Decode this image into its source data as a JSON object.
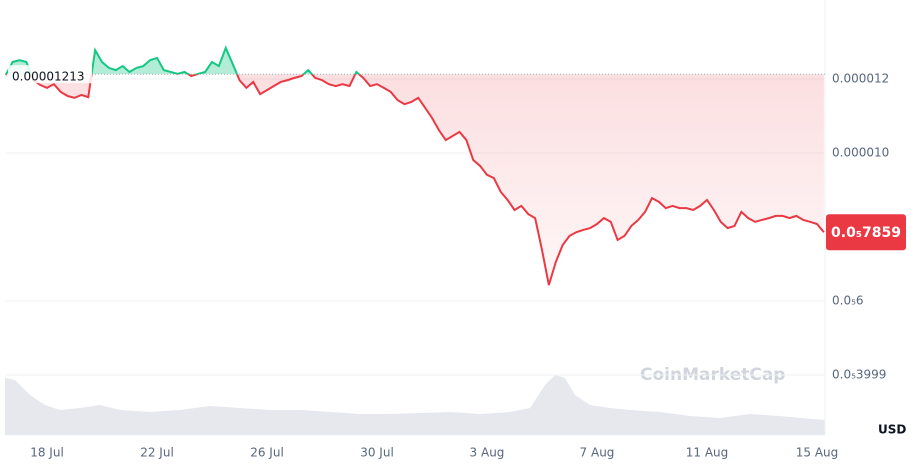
{
  "chart_data": {
    "type": "line",
    "watermark": "CoinMarketCap",
    "currency": "USD",
    "categories": [
      null,
      null,
      null,
      null,
      null,
      null,
      "18 Jul",
      null,
      null,
      null,
      null,
      null,
      null,
      null,
      null,
      null,
      null,
      null,
      null,
      null,
      null,
      null,
      "22 Jul",
      null,
      null,
      null,
      null,
      null,
      null,
      null,
      null,
      null,
      null,
      null,
      null,
      null,
      null,
      null,
      "26 Jul",
      null,
      null,
      null,
      null,
      null,
      null,
      null,
      null,
      null,
      null,
      null,
      null,
      null,
      null,
      null,
      "30 Jul",
      null,
      null,
      null,
      null,
      null,
      null,
      null,
      null,
      null,
      null,
      null,
      null,
      null,
      null,
      null,
      "3 Aug",
      null,
      null,
      null,
      null,
      null,
      null,
      null,
      null,
      null,
      null,
      null,
      null,
      null,
      null,
      null,
      "7 Aug",
      null,
      null,
      null,
      null,
      null,
      null,
      null,
      null,
      null,
      null,
      null,
      null,
      null,
      null,
      null,
      "11 Aug",
      null,
      null,
      null,
      null,
      null,
      null,
      null,
      null,
      null,
      null,
      null,
      null,
      null,
      null,
      null,
      "15 Aug",
      null
    ],
    "series": [
      {
        "color": "#ea3943",
        "up_color": "#16c784",
        "values": [
          1.211e-05,
          1.246e-05,
          1.251e-05,
          1.246e-05,
          1.197e-05,
          1.184e-05,
          1.176e-05,
          1.186e-05,
          1.165e-05,
          1.154e-05,
          1.149e-05,
          1.157e-05,
          1.151e-05,
          1.278e-05,
          1.246e-05,
          1.23e-05,
          1.224e-05,
          1.235e-05,
          1.219e-05,
          1.23e-05,
          1.235e-05,
          1.251e-05,
          1.257e-05,
          1.224e-05,
          1.219e-05,
          1.214e-05,
          1.219e-05,
          1.208e-05,
          1.214e-05,
          1.219e-05,
          1.246e-05,
          1.235e-05,
          1.284e-05,
          1.241e-05,
          1.197e-05,
          1.176e-05,
          1.192e-05,
          1.159e-05,
          1.17e-05,
          1.181e-05,
          1.192e-05,
          1.197e-05,
          1.203e-05,
          1.208e-05,
          1.224e-05,
          1.203e-05,
          1.197e-05,
          1.186e-05,
          1.181e-05,
          1.186e-05,
          1.181e-05,
          1.219e-05,
          1.203e-05,
          1.181e-05,
          1.186e-05,
          1.176e-05,
          1.165e-05,
          1.143e-05,
          1.132e-05,
          1.138e-05,
          1.149e-05,
          1.122e-05,
          1.095e-05,
          1.062e-05,
          1.035e-05,
          1.046e-05,
          1.057e-05,
          1.035e-05,
          9.81e-06,
          9.65e-06,
          9.41e-06,
          9.32e-06,
          8.95e-06,
          8.73e-06,
          8.46e-06,
          8.57e-06,
          8.35e-06,
          8.24e-06,
          7.38e-06,
          6.43e-06,
          7.05e-06,
          7.51e-06,
          7.76e-06,
          7.86e-06,
          7.92e-06,
          7.97e-06,
          8.08e-06,
          8.24e-06,
          8.14e-06,
          7.65e-06,
          7.76e-06,
          8.03e-06,
          8.19e-06,
          8.41e-06,
          8.78e-06,
          8.68e-06,
          8.51e-06,
          8.57e-06,
          8.51e-06,
          8.51e-06,
          8.46e-06,
          8.57e-06,
          8.73e-06,
          8.46e-06,
          8.14e-06,
          7.97e-06,
          8.03e-06,
          8.41e-06,
          8.24e-06,
          8.14e-06,
          8.19e-06,
          8.24e-06,
          8.3e-06,
          8.3e-06,
          8.24e-06,
          8.3e-06,
          8.19e-06,
          8.14e-06,
          8.08e-06,
          7.859e-06
        ]
      }
    ],
    "baseline": 1.213e-05,
    "baseline_label": "0.00001213",
    "last_label": "0.0₅7859",
    "ylim": [
      4e-06,
      1.4e-05
    ],
    "yticks": [
      {
        "value": 4e-06,
        "label": "0.0₅3999"
      },
      {
        "value": 6e-06,
        "label": "0.0₅6"
      },
      {
        "value": 1e-05,
        "label": "0.000010"
      },
      {
        "value": 1.2e-05,
        "label": "0.000012"
      }
    ],
    "grid": true
  }
}
